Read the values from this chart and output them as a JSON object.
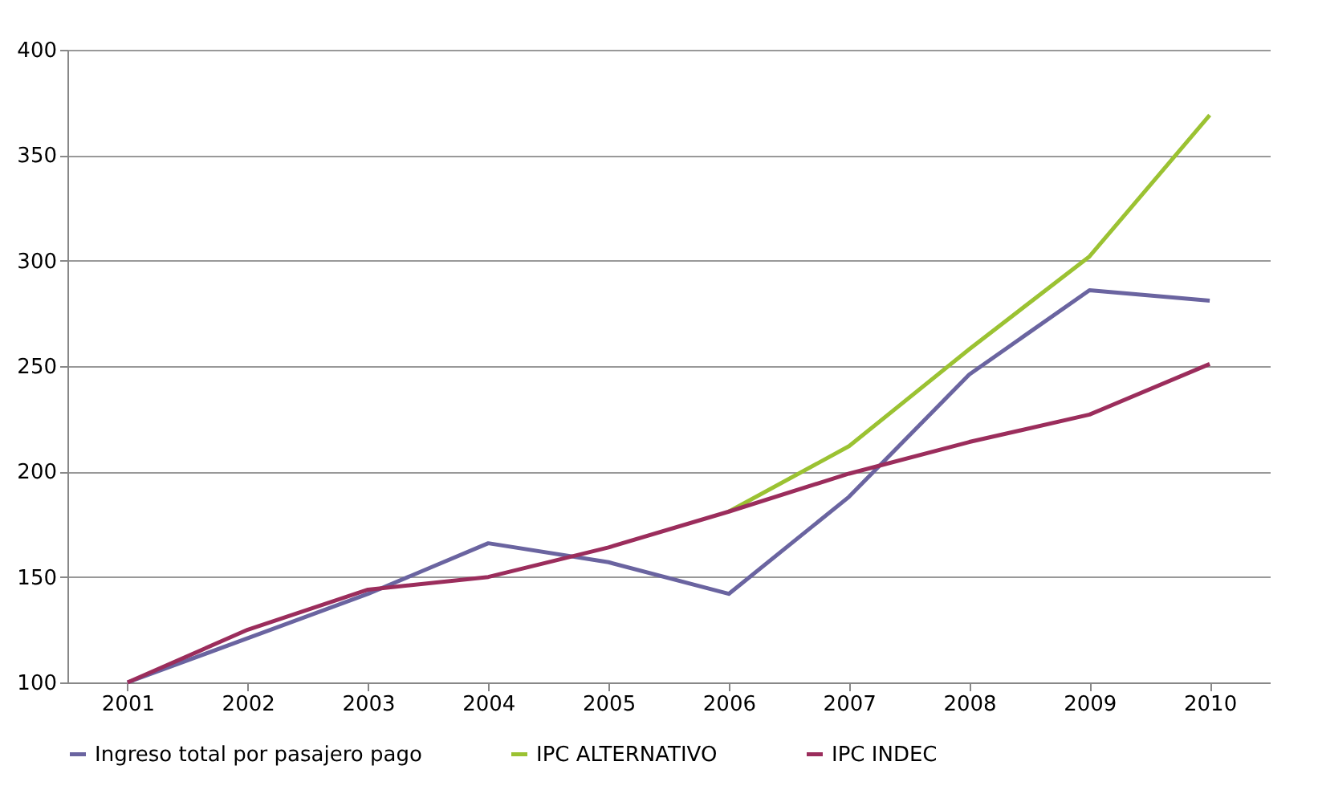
{
  "chart_data": {
    "type": "line",
    "categories": [
      "2001",
      "2002",
      "2003",
      "2004",
      "2005",
      "2006",
      "2007",
      "2008",
      "2009",
      "2010"
    ],
    "series": [
      {
        "name": "Ingreso total por pasajero pago",
        "color": "#6a64a0",
        "values": [
          100,
          121,
          142,
          166,
          157,
          142,
          188,
          246,
          286,
          281
        ]
      },
      {
        "name": "IPC ALTERNATIVO",
        "color": "#9bc232",
        "values": [
          null,
          null,
          null,
          null,
          null,
          181,
          212,
          258,
          302,
          369
        ]
      },
      {
        "name": "IPC INDEC",
        "color": "#9b2d5c",
        "values": [
          100,
          125,
          144,
          150,
          164,
          181,
          199,
          214,
          227,
          251
        ]
      }
    ],
    "ylim": [
      100,
      400
    ],
    "yticks": [
      100,
      150,
      200,
      250,
      300,
      350,
      400
    ],
    "grid": "y",
    "legend": "bottom",
    "marker": "none",
    "line_style": "solid"
  }
}
